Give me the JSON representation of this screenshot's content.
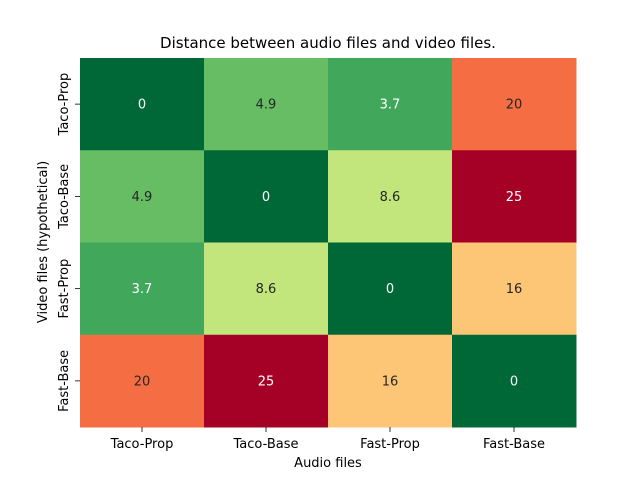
{
  "chart_data": {
    "type": "heatmap",
    "title": "Distance between audio files and video files.",
    "xlabel": "Audio files",
    "ylabel": "Video files (hypothetical)",
    "x_categories": [
      "Taco-Prop",
      "Taco-Base",
      "Fast-Prop",
      "Fast-Base"
    ],
    "y_categories": [
      "Taco-Prop",
      "Taco-Base",
      "Fast-Prop",
      "Fast-Base"
    ],
    "values": [
      [
        0,
        4.9,
        3.7,
        20
      ],
      [
        4.9,
        0,
        8.6,
        25
      ],
      [
        3.7,
        8.6,
        0,
        16
      ],
      [
        20,
        25,
        16,
        0
      ]
    ],
    "labels": [
      [
        "0",
        "4.9",
        "3.7",
        "20"
      ],
      [
        "4.9",
        "0",
        "8.6",
        "25"
      ],
      [
        "3.7",
        "8.6",
        "0",
        "16"
      ],
      [
        "20",
        "25",
        "16",
        "0"
      ]
    ],
    "colormap": "RdYlGn_r",
    "vrange": [
      0,
      25
    ],
    "colorbar": false,
    "colors": {
      "c0": "#006837",
      "c3_7": "#41a85b",
      "c4_9": "#66bd63",
      "c8_6": "#c2e67c",
      "c16": "#fdc677",
      "c20": "#f46d43",
      "c25": "#a50026"
    }
  }
}
